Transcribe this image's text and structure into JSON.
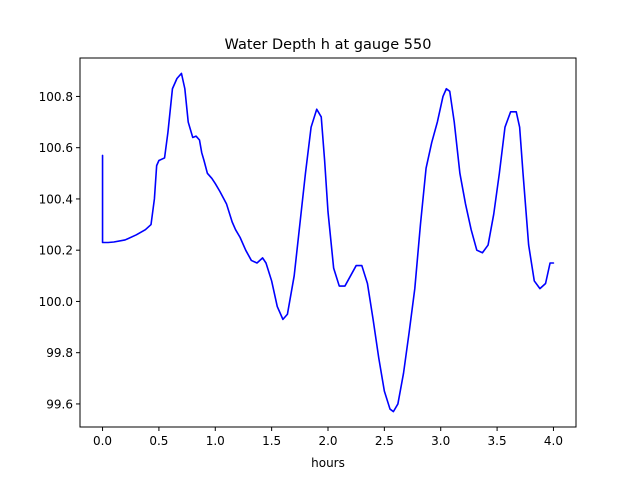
{
  "chart_data": {
    "type": "line",
    "title": "Water Depth h at gauge 550",
    "xlabel": "hours",
    "ylabel": "",
    "xlim": [
      -0.2,
      4.2
    ],
    "ylim": [
      99.51,
      100.95
    ],
    "grid": false,
    "xticks": [
      0.0,
      0.5,
      1.0,
      1.5,
      2.0,
      2.5,
      3.0,
      3.5,
      4.0
    ],
    "xtick_labels": [
      "0.0",
      "0.5",
      "1.0",
      "1.5",
      "2.0",
      "2.5",
      "3.0",
      "3.5",
      "4.0"
    ],
    "yticks": [
      99.6,
      99.8,
      100.0,
      100.2,
      100.4,
      100.6,
      100.8
    ],
    "ytick_labels": [
      "99.6",
      "99.8",
      "100.0",
      "100.2",
      "100.4",
      "100.6",
      "100.8"
    ],
    "series": [
      {
        "color": "#0000ff",
        "x": [
          0.0,
          0.0,
          0.05,
          0.1,
          0.2,
          0.3,
          0.38,
          0.43,
          0.46,
          0.48,
          0.5,
          0.55,
          0.58,
          0.62,
          0.66,
          0.7,
          0.73,
          0.76,
          0.8,
          0.83,
          0.86,
          0.88,
          0.9,
          0.93,
          0.97,
          1.0,
          1.04,
          1.1,
          1.15,
          1.18,
          1.22,
          1.27,
          1.32,
          1.37,
          1.42,
          1.45,
          1.5,
          1.55,
          1.6,
          1.64,
          1.7,
          1.75,
          1.8,
          1.85,
          1.9,
          1.94,
          1.97,
          2.0,
          2.05,
          2.1,
          2.15,
          2.2,
          2.25,
          2.3,
          2.35,
          2.4,
          2.45,
          2.5,
          2.55,
          2.58,
          2.62,
          2.67,
          2.72,
          2.77,
          2.82,
          2.87,
          2.92,
          2.97,
          3.02,
          3.05,
          3.08,
          3.12,
          3.17,
          3.22,
          3.27,
          3.32,
          3.37,
          3.42,
          3.47,
          3.52,
          3.57,
          3.62,
          3.67,
          3.7,
          3.73,
          3.78,
          3.83,
          3.88,
          3.93,
          3.97,
          4.0
        ],
        "y": [
          100.57,
          100.23,
          100.23,
          100.232,
          100.24,
          100.26,
          100.28,
          100.3,
          100.4,
          100.53,
          100.55,
          100.56,
          100.66,
          100.83,
          100.87,
          100.89,
          100.83,
          100.7,
          100.64,
          100.645,
          100.63,
          100.58,
          100.55,
          100.5,
          100.48,
          100.46,
          100.43,
          100.38,
          100.31,
          100.28,
          100.25,
          100.2,
          100.16,
          100.15,
          100.17,
          100.15,
          100.08,
          99.98,
          99.93,
          99.95,
          100.1,
          100.3,
          100.5,
          100.68,
          100.75,
          100.72,
          100.55,
          100.35,
          100.13,
          100.06,
          100.06,
          100.1,
          100.14,
          100.14,
          100.07,
          99.93,
          99.78,
          99.65,
          99.58,
          99.57,
          99.6,
          99.72,
          99.88,
          100.05,
          100.3,
          100.52,
          100.62,
          100.7,
          100.8,
          100.83,
          100.82,
          100.7,
          100.5,
          100.38,
          100.28,
          100.2,
          100.19,
          100.22,
          100.34,
          100.5,
          100.68,
          100.74,
          100.74,
          100.68,
          100.5,
          100.22,
          100.08,
          100.05,
          100.07,
          100.15,
          100.15
        ]
      }
    ]
  }
}
